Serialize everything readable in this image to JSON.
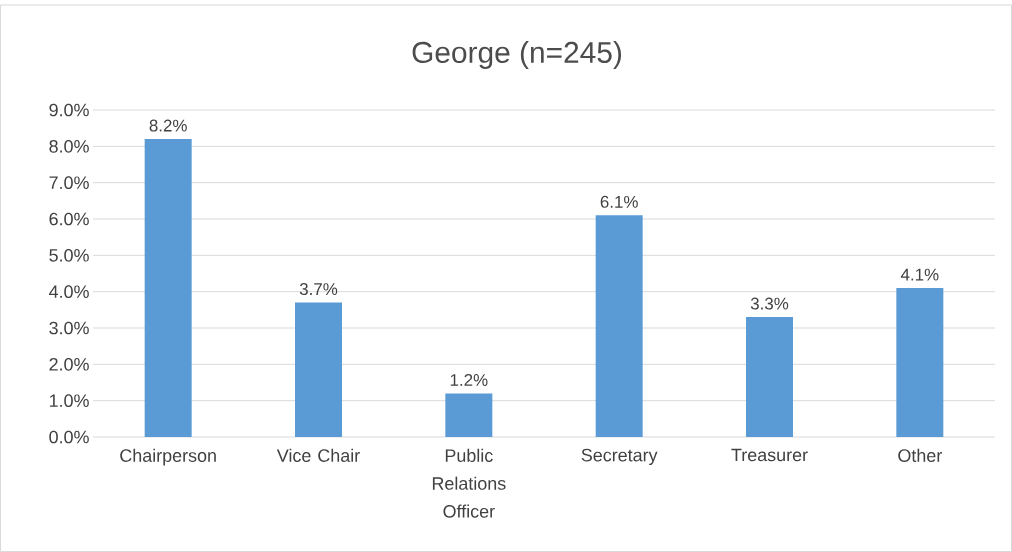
{
  "chart_data": {
    "type": "bar",
    "title": "George (n=245)",
    "categories": [
      "Chairperson",
      "Vice Chair",
      "Public Relations Officer",
      "Secretary",
      "Treasurer",
      "Other"
    ],
    "values": [
      8.2,
      3.7,
      1.2,
      6.1,
      3.3,
      4.1
    ],
    "value_labels": [
      "8.2%",
      "3.7%",
      "1.2%",
      "6.1%",
      "3.3%",
      "4.1%"
    ],
    "color": "#5b9bd5",
    "ylim": [
      0,
      9
    ],
    "yticks": [
      {
        "value": 0,
        "label": "0.0%"
      },
      {
        "value": 1,
        "label": "1.0%"
      },
      {
        "value": 2,
        "label": "2.0%"
      },
      {
        "value": 3,
        "label": "3.0%"
      },
      {
        "value": 4,
        "label": "4.0%"
      },
      {
        "value": 5,
        "label": "5.0%"
      },
      {
        "value": 6,
        "label": "6.0%"
      },
      {
        "value": 7,
        "label": "7.0%"
      },
      {
        "value": 8,
        "label": "8.0%"
      },
      {
        "value": 9,
        "label": "9.0%"
      }
    ],
    "grid": "y"
  }
}
